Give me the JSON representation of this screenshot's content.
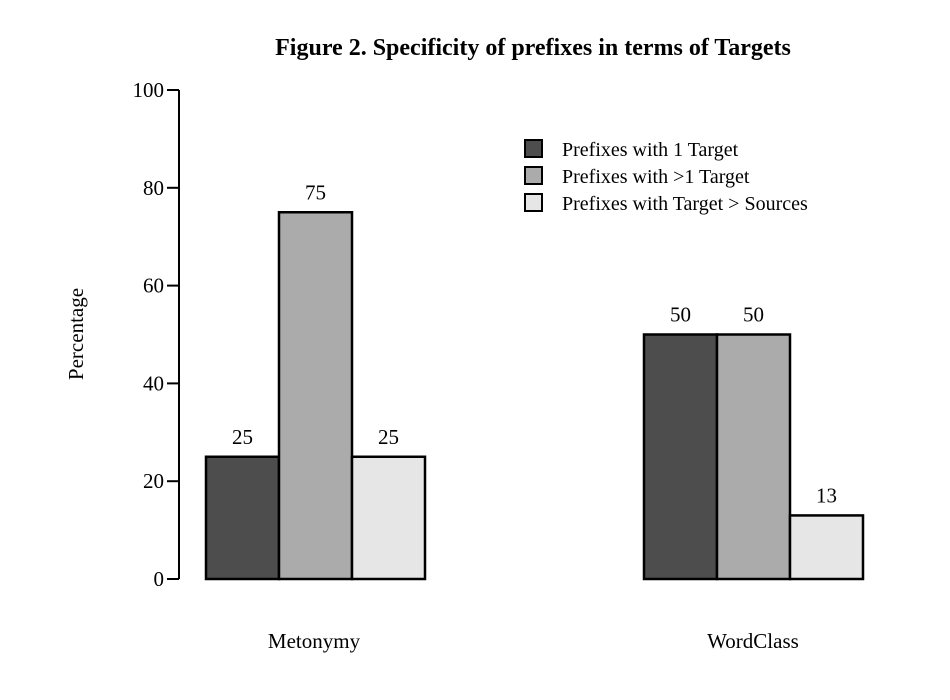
{
  "chart_data": {
    "type": "bar",
    "title": "Figure 2. Specificity of prefixes in terms of Targets",
    "xlabel": "",
    "ylabel": "Percentage",
    "ylim": [
      0,
      100
    ],
    "yticks": [
      0,
      20,
      40,
      60,
      80,
      100
    ],
    "categories": [
      "Metonymy",
      "WordClass"
    ],
    "series": [
      {
        "name": "Prefixes with 1 Target",
        "values": [
          25,
          50
        ],
        "color": "#4d4d4d"
      },
      {
        "name": "Prefixes with >1 Target",
        "values": [
          75,
          50
        ],
        "color": "#ababab"
      },
      {
        "name": "Prefixes with Target > Sources",
        "values": [
          25,
          13
        ],
        "color": "#e6e6e6"
      }
    ],
    "data_labels": [
      [
        "25",
        "50"
      ],
      [
        "75",
        "50"
      ],
      [
        "25",
        "13"
      ]
    ],
    "legend_position": "top-right",
    "grid": false
  }
}
